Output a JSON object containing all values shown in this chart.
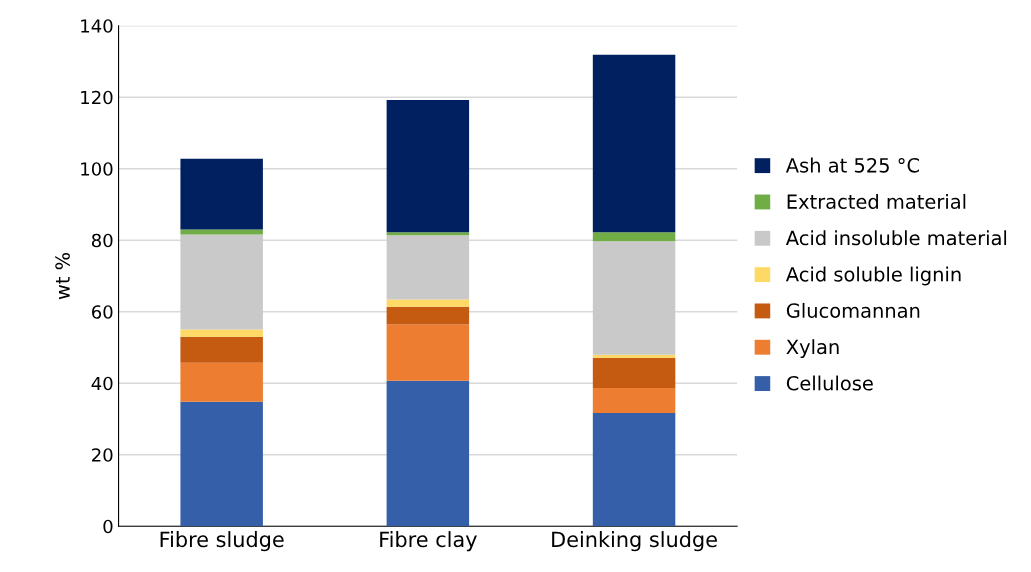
{
  "chart_data": {
    "type": "bar",
    "stacked": true,
    "ylabel": "wt %",
    "categories": [
      "Fibre sludge",
      "Fibre clay",
      "Deinking sludge"
    ],
    "series": [
      {
        "name": "Cellulose",
        "color": "#355fa8",
        "values": [
          34.8,
          40.7,
          31.7
        ]
      },
      {
        "name": "Xylan",
        "color": "#ed7d31",
        "values": [
          10.9,
          15.7,
          7.0
        ]
      },
      {
        "name": "Glucomannan",
        "color": "#c55a11",
        "values": [
          7.3,
          5.0,
          8.4
        ]
      },
      {
        "name": "Acid soluble lignin",
        "color": "#ffd966",
        "values": [
          2.0,
          2.0,
          0.9
        ]
      },
      {
        "name": "Acid insoluble material",
        "color": "#c9c9c9",
        "values": [
          26.6,
          18.0,
          31.7
        ]
      },
      {
        "name": "Extracted material",
        "color": "#70ad47",
        "values": [
          1.4,
          0.8,
          2.5
        ]
      },
      {
        "name": "Ash at 525 °C",
        "color": "#002060",
        "values": [
          19.8,
          37.0,
          49.7
        ]
      }
    ],
    "ylim": [
      0,
      140
    ],
    "yticks": [
      0,
      20,
      40,
      60,
      80,
      100,
      120,
      140
    ],
    "grid": "y",
    "legend": "right"
  }
}
